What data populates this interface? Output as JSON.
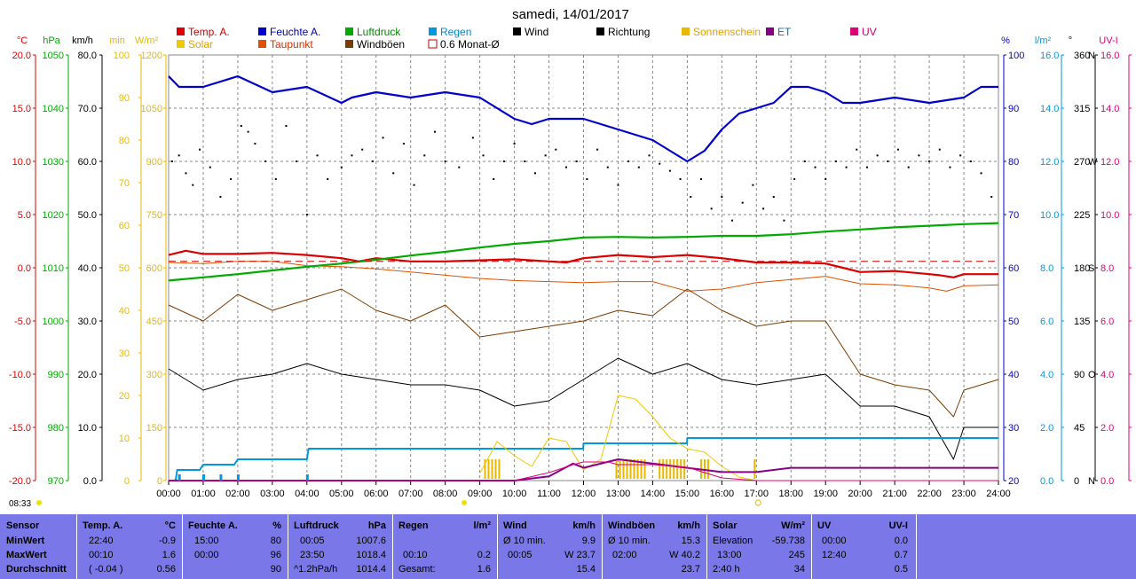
{
  "chart_data": {
    "type": "line",
    "title": "samedi, 14/01/2017",
    "x_ticks": [
      "00:00",
      "01:00",
      "02:00",
      "03:00",
      "04:00",
      "05:00",
      "06:00",
      "07:00",
      "08:00",
      "09:00",
      "10:00",
      "11:00",
      "12:00",
      "13:00",
      "14:00",
      "15:00",
      "16:00",
      "17:00",
      "18:00",
      "19:00",
      "20:00",
      "21:00",
      "22:00",
      "23:00",
      "24:00"
    ],
    "sunrise": "08:33",
    "colors": {
      "temp": "#dd0000",
      "humidity": "#0000cc",
      "pressure": "#00aa00",
      "rain": "#0099dd",
      "wind": "#000000",
      "direction": "#000000",
      "sunshine": "#e8b800",
      "et": "#880088",
      "uv": "#dd0077",
      "solar": "#f0c800",
      "dewpoint": "#e05000",
      "gusts": "#7a3c00",
      "month_avg": "#cc0000",
      "grid": "#888888"
    },
    "legend": [
      {
        "label": "Temp. A.",
        "color": "#dd0000"
      },
      {
        "label": "Feuchte A.",
        "color": "#0000cc"
      },
      {
        "label": "Luftdruck",
        "color": "#00aa00"
      },
      {
        "label": "Regen",
        "color": "#0099dd"
      },
      {
        "label": "Wind",
        "color": "#000000"
      },
      {
        "label": "Richtung",
        "color": "#000000"
      },
      {
        "label": "Sonnenschein",
        "color": "#e8b800"
      },
      {
        "label": "ET",
        "color": "#880088"
      },
      {
        "label": "UV",
        "color": "#dd0077"
      },
      {
        "label": "Solar",
        "color": "#f0c800"
      },
      {
        "label": "Taupunkt",
        "color": "#e05000"
      },
      {
        "label": "Windböen",
        "color": "#7a3c00"
      },
      {
        "label": "0.6 Monat-Ø",
        "color": "#cc0000",
        "hollow": true
      }
    ],
    "left_axes": [
      {
        "unit": "°C",
        "color": "#dd0000",
        "ticks": [
          "20.0",
          "15.0",
          "10.0",
          "5.0",
          "0.0",
          "-5.0",
          "-10.0",
          "-15.0",
          "-20.0"
        ]
      },
      {
        "unit": "hPa",
        "color": "#00aa00",
        "ticks": [
          "1050",
          "1040",
          "1030",
          "1020",
          "1010",
          "1000",
          "990",
          "980",
          "970"
        ]
      },
      {
        "unit": "km/h",
        "color": "#000000",
        "ticks": [
          "80.0",
          "70.0",
          "60.0",
          "50.0",
          "40.0",
          "30.0",
          "20.0",
          "10.0",
          "0.0"
        ]
      },
      {
        "unit": "min",
        "color": "#e8b800",
        "ticks": [
          "100",
          "90",
          "80",
          "70",
          "60",
          "50",
          "40",
          "30",
          "20",
          "10",
          "0"
        ]
      },
      {
        "unit": "W/m²",
        "color": "#e8b800",
        "ticks": [
          "1200",
          "1050",
          "900",
          "750",
          "600",
          "450",
          "300",
          "150",
          "0"
        ]
      }
    ],
    "right_axes": [
      {
        "unit": "%",
        "color": "#0000cc",
        "ticks": [
          "100",
          "90",
          "80",
          "70",
          "60",
          "50",
          "40",
          "30",
          "20"
        ]
      },
      {
        "unit": "l/m²",
        "color": "#0099dd",
        "ticks": [
          "16.0",
          "14.0",
          "12.0",
          "10.0",
          "8.0",
          "6.0",
          "4.0",
          "2.0",
          "0.0"
        ]
      },
      {
        "unit": "°",
        "color": "#000000",
        "ticks": [
          "360",
          "315",
          "270",
          "225",
          "180",
          "135",
          "90",
          "45",
          "0"
        ],
        "dirs": [
          "N",
          "",
          "W",
          "",
          "S",
          "",
          "O",
          "",
          "N"
        ]
      },
      {
        "unit": "UV-I",
        "color": "#dd0077",
        "ticks": [
          "16.0",
          "14.0",
          "12.0",
          "10.0",
          "8.0",
          "6.0",
          "4.0",
          "2.0",
          "0.0"
        ]
      }
    ],
    "series": [
      {
        "name": "Temp. A.",
        "key": "temp",
        "unit": "°C",
        "x_hours": [
          0,
          0.5,
          1,
          2,
          3,
          4,
          5,
          5.5,
          6,
          7,
          8,
          9,
          10,
          11,
          11.5,
          12,
          13,
          14,
          15,
          16,
          17,
          18,
          19,
          19.5,
          20,
          21,
          22,
          22.3,
          22.7,
          23,
          24
        ],
        "values": [
          1.2,
          1.6,
          1.3,
          1.3,
          1.4,
          1.2,
          0.9,
          0.6,
          0.9,
          0.6,
          0.6,
          0.7,
          0.8,
          0.6,
          0.5,
          0.9,
          1.2,
          1.0,
          1.2,
          0.9,
          0.5,
          0.5,
          0.4,
          0.0,
          -0.4,
          -0.3,
          -0.6,
          -0.7,
          -0.9,
          -0.6,
          -0.6
        ]
      },
      {
        "name": "Taupunkt",
        "key": "dewpoint",
        "unit": "°C",
        "x_hours": [
          0,
          1,
          2,
          3,
          4,
          5,
          6,
          7,
          8,
          9,
          10,
          11,
          12,
          13,
          14,
          15,
          16,
          17,
          18,
          19,
          20,
          21,
          22,
          22.5,
          23,
          24
        ],
        "values": [
          0.5,
          0.4,
          0.6,
          0.6,
          0.2,
          0.1,
          -0.1,
          -0.4,
          -0.7,
          -1.0,
          -1.2,
          -1.3,
          -1.4,
          -1.3,
          -1.3,
          -2.2,
          -2.0,
          -1.4,
          -1.1,
          -0.8,
          -1.5,
          -1.6,
          -1.9,
          -2.2,
          -1.7,
          -1.6
        ]
      },
      {
        "name": "Feuchte A.",
        "key": "humidity",
        "unit": "%",
        "x_hours": [
          0,
          0.3,
          1,
          2,
          3,
          4,
          5,
          5.3,
          6,
          7,
          8,
          9,
          9.5,
          10,
          10.5,
          11,
          12,
          13,
          14,
          14.5,
          15,
          15.5,
          16,
          16.5,
          17,
          17.5,
          18,
          18.5,
          19,
          19.5,
          20,
          21,
          22,
          23,
          23.5,
          24
        ],
        "values": [
          96,
          94,
          94,
          96,
          93,
          94,
          91,
          92,
          93,
          92,
          93,
          92,
          90,
          88,
          87,
          88,
          88,
          86,
          84,
          82,
          80,
          82,
          86,
          89,
          90,
          91,
          94,
          94,
          93,
          91,
          91,
          92,
          91,
          92,
          94,
          94
        ]
      },
      {
        "name": "Luftdruck",
        "key": "pressure",
        "unit": "hPa",
        "x_hours": [
          0,
          1,
          2,
          3,
          4,
          5,
          6,
          7,
          8,
          9,
          10,
          11,
          12,
          13,
          14,
          15,
          16,
          17,
          18,
          19,
          20,
          21,
          22,
          23,
          24
        ],
        "values": [
          1007.6,
          1008.2,
          1008.8,
          1009.5,
          1010.2,
          1010.8,
          1011.5,
          1012.3,
          1013.0,
          1013.8,
          1014.5,
          1015.0,
          1015.7,
          1015.8,
          1015.7,
          1015.8,
          1016.0,
          1016.0,
          1016.3,
          1016.8,
          1017.2,
          1017.6,
          1017.9,
          1018.2,
          1018.4
        ]
      },
      {
        "name": "Wind",
        "key": "wind",
        "unit": "km/h",
        "x_hours": [
          0,
          1,
          2,
          3,
          4,
          5,
          6,
          7,
          8,
          9,
          10,
          11,
          12,
          13,
          14,
          15,
          16,
          17,
          18,
          19,
          20,
          21,
          22,
          22.7,
          23,
          24
        ],
        "values": [
          21,
          17,
          19,
          20,
          22,
          20,
          19,
          18,
          18,
          17,
          14,
          15,
          19,
          23,
          20,
          22,
          19,
          18,
          19,
          20,
          14,
          14,
          12,
          4,
          10,
          10
        ]
      },
      {
        "name": "Windböen",
        "key": "gusts",
        "unit": "km/h",
        "x_hours": [
          0,
          1,
          2,
          3,
          4,
          5,
          6,
          7,
          8,
          9,
          10,
          11,
          12,
          13,
          14,
          15,
          16,
          17,
          18,
          19,
          20,
          21,
          22,
          22.7,
          23,
          24
        ],
        "values": [
          33,
          30,
          35,
          32,
          34,
          36,
          32,
          30,
          33,
          27,
          28,
          29,
          30,
          32,
          31,
          36,
          32,
          29,
          30,
          30,
          20,
          18,
          17,
          12,
          17,
          19
        ]
      },
      {
        "name": "Regen",
        "key": "rain",
        "unit": "l/m²",
        "x_hours": [
          0,
          0.2,
          0.25,
          0.9,
          1.0,
          1.9,
          2.0,
          4.0,
          4.05,
          11.99,
          12.0,
          14.99,
          15.0,
          24
        ],
        "values": [
          0,
          0,
          0.4,
          0.4,
          0.6,
          0.6,
          0.8,
          0.8,
          1.2,
          1.2,
          1.4,
          1.4,
          1.6,
          1.6
        ]
      },
      {
        "name": "Solar",
        "key": "solar",
        "unit": "W/m²",
        "x_hours": [
          9,
          9.5,
          10,
          10.5,
          11,
          11.5,
          12,
          12.5,
          13,
          13.5,
          14,
          14.5,
          15,
          15.5,
          16,
          16.5,
          17
        ],
        "values": [
          20,
          110,
          70,
          40,
          120,
          110,
          30,
          60,
          240,
          230,
          180,
          120,
          90,
          80,
          40,
          10,
          0
        ]
      },
      {
        "name": "ET",
        "key": "et",
        "unit": "min",
        "x_hours": [
          0,
          10,
          11,
          11.7,
          12,
          13,
          14,
          15,
          16,
          17,
          18,
          19,
          20,
          24
        ],
        "values": [
          0,
          0,
          1,
          4,
          3,
          5,
          4,
          3,
          2,
          2,
          3,
          3,
          3,
          3
        ]
      },
      {
        "name": "UV",
        "key": "uv",
        "unit": "UV-I",
        "x_hours": [
          0,
          10,
          11,
          11.7,
          12,
          12.7,
          13,
          14,
          15,
          15.5,
          16,
          17,
          18,
          24
        ],
        "values": [
          0,
          0,
          0.3,
          0.6,
          0.7,
          0.7,
          0.6,
          0.6,
          0.5,
          0.3,
          0.1,
          0,
          0,
          0
        ]
      },
      {
        "name": "0.6 Monat-Ø",
        "key": "month_avg",
        "unit": "°C",
        "x_hours": [
          0,
          24
        ],
        "values": [
          0.6,
          0.6
        ]
      }
    ],
    "direction_points": [
      [
        0.1,
        270
      ],
      [
        0.3,
        275
      ],
      [
        0.5,
        260
      ],
      [
        0.7,
        250
      ],
      [
        0.9,
        280
      ],
      [
        1.2,
        265
      ],
      [
        1.5,
        240
      ],
      [
        1.8,
        255
      ],
      [
        2.1,
        300
      ],
      [
        2.3,
        295
      ],
      [
        2.5,
        285
      ],
      [
        2.8,
        270
      ],
      [
        3.1,
        255
      ],
      [
        3.4,
        300
      ],
      [
        3.7,
        270
      ],
      [
        4.0,
        225
      ],
      [
        4.3,
        275
      ],
      [
        4.6,
        255
      ],
      [
        5.0,
        265
      ],
      [
        5.3,
        275
      ],
      [
        5.6,
        280
      ],
      [
        5.9,
        270
      ],
      [
        6.2,
        290
      ],
      [
        6.5,
        260
      ],
      [
        6.8,
        285
      ],
      [
        7.1,
        250
      ],
      [
        7.4,
        275
      ],
      [
        7.7,
        295
      ],
      [
        8.0,
        270
      ],
      [
        8.4,
        265
      ],
      [
        8.8,
        290
      ],
      [
        9.1,
        275
      ],
      [
        9.4,
        255
      ],
      [
        9.7,
        270
      ],
      [
        10.0,
        285
      ],
      [
        10.3,
        270
      ],
      [
        10.6,
        260
      ],
      [
        10.9,
        275
      ],
      [
        11.2,
        280
      ],
      [
        11.5,
        265
      ],
      [
        11.8,
        270
      ],
      [
        12.1,
        255
      ],
      [
        12.4,
        280
      ],
      [
        12.7,
        265
      ],
      [
        13.0,
        250
      ],
      [
        13.3,
        270
      ],
      [
        13.6,
        265
      ],
      [
        13.9,
        275
      ],
      [
        14.2,
        268
      ],
      [
        14.5,
        262
      ],
      [
        14.8,
        255
      ],
      [
        15.1,
        240
      ],
      [
        15.4,
        255
      ],
      [
        15.7,
        230
      ],
      [
        16.0,
        240
      ],
      [
        16.3,
        220
      ],
      [
        16.6,
        235
      ],
      [
        16.9,
        250
      ],
      [
        17.2,
        230
      ],
      [
        17.5,
        240
      ],
      [
        17.8,
        220
      ],
      [
        18.1,
        255
      ],
      [
        18.4,
        270
      ],
      [
        18.7,
        265
      ],
      [
        19.0,
        255
      ],
      [
        19.3,
        270
      ],
      [
        19.6,
        265
      ],
      [
        19.9,
        280
      ],
      [
        20.2,
        265
      ],
      [
        20.5,
        275
      ],
      [
        20.8,
        270
      ],
      [
        21.1,
        280
      ],
      [
        21.4,
        265
      ],
      [
        21.7,
        275
      ],
      [
        22.0,
        270
      ],
      [
        22.3,
        280
      ],
      [
        22.6,
        265
      ],
      [
        22.9,
        275
      ],
      [
        23.2,
        270
      ],
      [
        23.5,
        260
      ],
      [
        23.8,
        240
      ]
    ],
    "sunshine_bars": [
      [
        9.15,
        9.6
      ],
      [
        12.95,
        13.8
      ],
      [
        14.2,
        14.95
      ],
      [
        15.4,
        15.7
      ],
      [
        16.95,
        17.0
      ]
    ]
  },
  "stats": {
    "headers": {
      "sensor": "Sensor",
      "temp": "Temp. A.",
      "temp_unit": "°C",
      "hum": "Feuchte A.",
      "hum_unit": "%",
      "press": "Luftdruck",
      "press_unit": "hPa",
      "rain": "Regen",
      "rain_unit": "l/m²",
      "wind": "Wind",
      "wind_unit": "km/h",
      "gust": "Windböen",
      "gust_unit": "km/h",
      "solar": "Solar",
      "solar_unit": "W/m²",
      "uv": "UV",
      "uv_unit": "UV-I"
    },
    "rows": [
      {
        "label": "MinWert",
        "temp_t": "22:40",
        "temp_v": "-0.9",
        "hum_t": "15:00",
        "hum_v": "80",
        "press_t": "00:05",
        "press_v": "1007.6",
        "rain_t": "",
        "rain_v": "",
        "wind_t": "Ø 10 min.",
        "wind_v": "9.9",
        "gust_t": "Ø 10 min.",
        "gust_v": "15.3",
        "solar_t": "Elevation",
        "solar_v": "-59.738",
        "uv_t": "00:00",
        "uv_v": "0.0"
      },
      {
        "label": "MaxWert",
        "temp_t": "00:10",
        "temp_v": "1.6",
        "hum_t": "00:00",
        "hum_v": "96",
        "press_t": "23:50",
        "press_v": "1018.4",
        "rain_t": "00:10",
        "rain_v": "0.2",
        "wind_t": "00:05",
        "wind_v": "W 23.7",
        "gust_t": "02:00",
        "gust_v": "W 40.2",
        "solar_t": "13:00",
        "solar_v": "245",
        "uv_t": "12:40",
        "uv_v": "0.7"
      },
      {
        "label": "Durchschnitt",
        "temp_t": "( -0.04 )",
        "temp_v": "0.56",
        "hum_t": "",
        "hum_v": "90",
        "press_t": "^1.2hPa/h",
        "press_v": "1014.4",
        "rain_t": "Gesamt:",
        "rain_v": "1.6",
        "wind_t": "",
        "wind_v": "15.4",
        "gust_t": "",
        "gust_v": "23.7",
        "solar_t": "2:40 h",
        "solar_v": "34",
        "uv_t": "",
        "uv_v": "0.5"
      }
    ]
  }
}
